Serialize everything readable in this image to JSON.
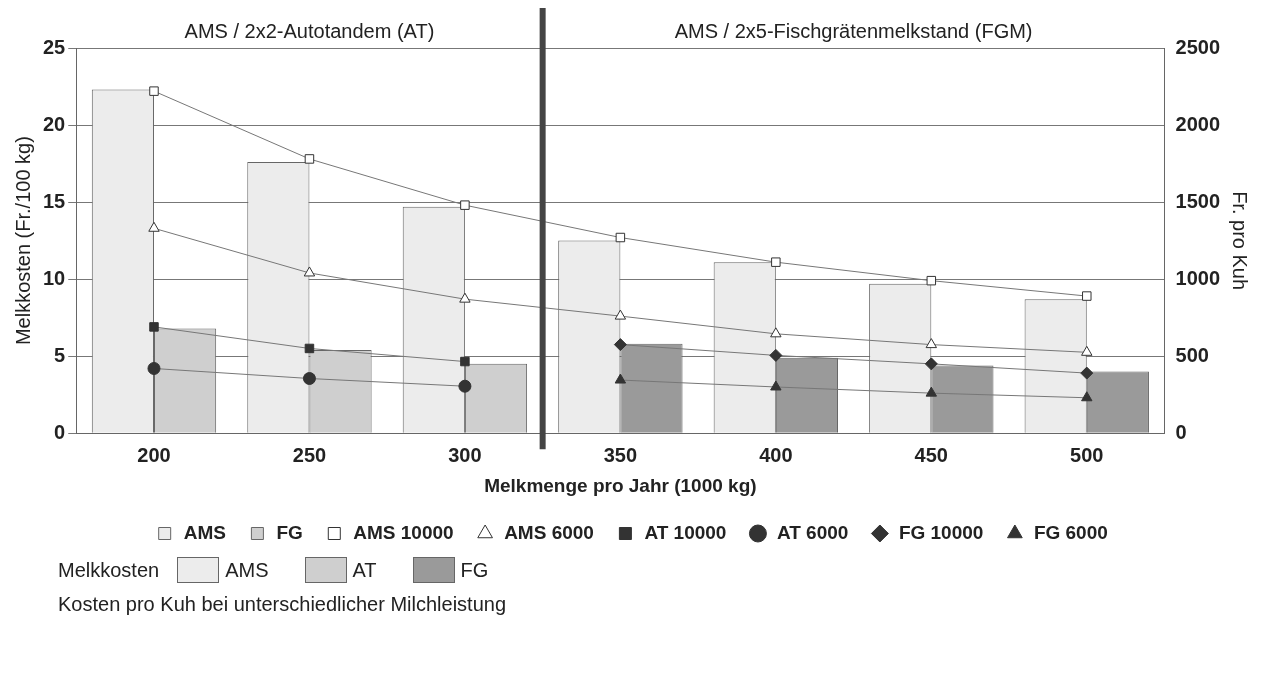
{
  "chart_data": {
    "type": "bar",
    "xlabel": "Melkmenge pro Jahr (1000 kg)",
    "ylabel": "Melkkosten (Fr./100 kg)",
    "y2label": "Fr. pro Kuh",
    "x": [
      200,
      250,
      300,
      350,
      400,
      450,
      500
    ],
    "xlim": [
      175,
      525
    ],
    "xticks": [
      200,
      250,
      300,
      350,
      400,
      450,
      500
    ],
    "ref_lines": [
      {
        "axis": "x",
        "value": 325,
        "color": "#444444"
      }
    ],
    "series": [
      {
        "name": "AMS",
        "color": "#ececec",
        "values": [
          22.3,
          17.6,
          14.7,
          12.5,
          11.1,
          9.7,
          8.7
        ]
      },
      {
        "name": "FG",
        "colors": [
          "#cfcfcf",
          "#cfcfcf",
          "#cfcfcf",
          "#9a9a9a",
          "#9a9a9a",
          "#9a9a9a",
          "#9a9a9a"
        ],
        "values": [
          6.8,
          5.4,
          4.5,
          5.8,
          4.9,
          4.4,
          4.0
        ]
      },
      {
        "name": "AMS 10000",
        "type": "line",
        "axis": "y2",
        "marker": "square",
        "color": "#ffffff",
        "values": [
          2220,
          1780,
          1480,
          1270,
          1110,
          990,
          890
        ]
      },
      {
        "name": "AMS 6000",
        "type": "line",
        "axis": "y2",
        "marker": "triangle",
        "color": "#ffffff",
        "values": [
          1330,
          1040,
          870,
          760,
          645,
          575,
          525
        ]
      },
      {
        "name": "AT 10000",
        "type": "line",
        "axis": "y2",
        "marker": "square",
        "color": "#333333",
        "values": [
          690,
          550,
          465,
          null,
          null,
          null,
          null
        ]
      },
      {
        "name": "AT 6000",
        "type": "line",
        "axis": "y2",
        "marker": "circle",
        "color": "#333333",
        "values": [
          420,
          355,
          305,
          null,
          null,
          null,
          null
        ]
      },
      {
        "name": "FG 10000",
        "type": "line",
        "axis": "y2",
        "marker": "diamond",
        "color": "#333333",
        "values": [
          null,
          null,
          null,
          575,
          505,
          450,
          390
        ]
      },
      {
        "name": "FG 6000",
        "type": "line",
        "axis": "y2",
        "marker": "triangle",
        "color": "#333333",
        "values": [
          null,
          null,
          null,
          345,
          300,
          260,
          230
        ]
      }
    ],
    "ylim": [
      0,
      25
    ],
    "yticks": [
      0,
      5,
      10,
      15,
      20,
      25
    ],
    "y2lim": [
      0,
      2500
    ],
    "y2ticks": [
      0,
      500,
      1000,
      1500,
      2000,
      2500
    ],
    "grid": "y",
    "legend": "bottom",
    "annotations": [
      "AMS / 2x2-Autotandem (AT)",
      "AMS / 2x5-Fischgrätenmelkstand (FGM)",
      "Melkkosten",
      "AMS",
      "AT",
      "FG",
      "Kosten pro Kuh bei unterschiedlicher Milchleistung"
    ]
  }
}
